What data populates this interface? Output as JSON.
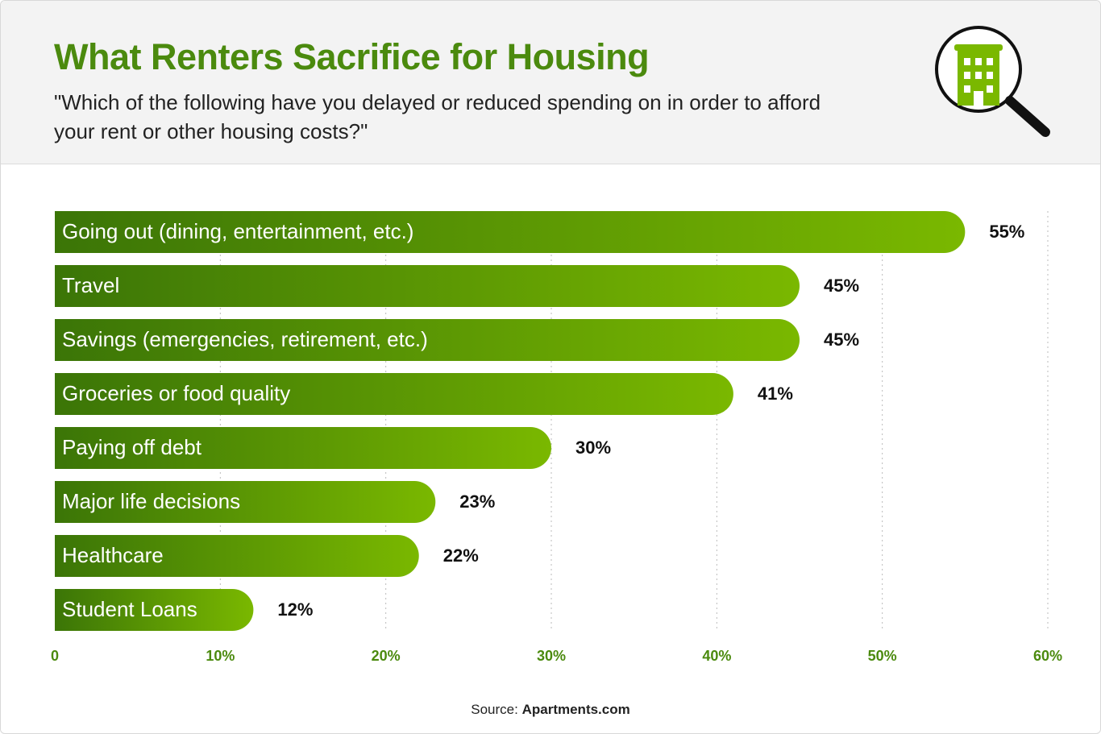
{
  "chart_data": {
    "type": "bar",
    "title": "What Renters Sacrifice for Housing",
    "subtitle": "\"Which of the following have you delayed or reduced spending on in order to afford your rent or other housing costs?\"",
    "categories": [
      "Going out (dining, entertainment, etc.)",
      "Travel",
      "Savings (emergencies, retirement, etc.)",
      "Groceries or food quality",
      "Paying off debt",
      "Major life decisions",
      "Healthcare",
      "Student Loans"
    ],
    "values": [
      55,
      45,
      45,
      41,
      30,
      23,
      22,
      12
    ],
    "value_labels": [
      "55%",
      "45%",
      "45%",
      "41%",
      "30%",
      "23%",
      "22%",
      "12%"
    ],
    "colors": [
      "#3b7507",
      "#7ab800"
    ],
    "xlim": [
      0,
      60
    ],
    "xticks": [
      0,
      {
        "value": 10,
        "label": "10%"
      },
      {
        "value": 20,
        "label": "20%"
      },
      {
        "value": 30,
        "label": "30%"
      },
      {
        "value": 40,
        "label": "40%"
      },
      {
        "value": 50,
        "label": "50%"
      },
      {
        "value": 60,
        "label": "60%"
      }
    ],
    "grid": true,
    "source_prefix": "Source:",
    "source": "Apartments.com"
  }
}
